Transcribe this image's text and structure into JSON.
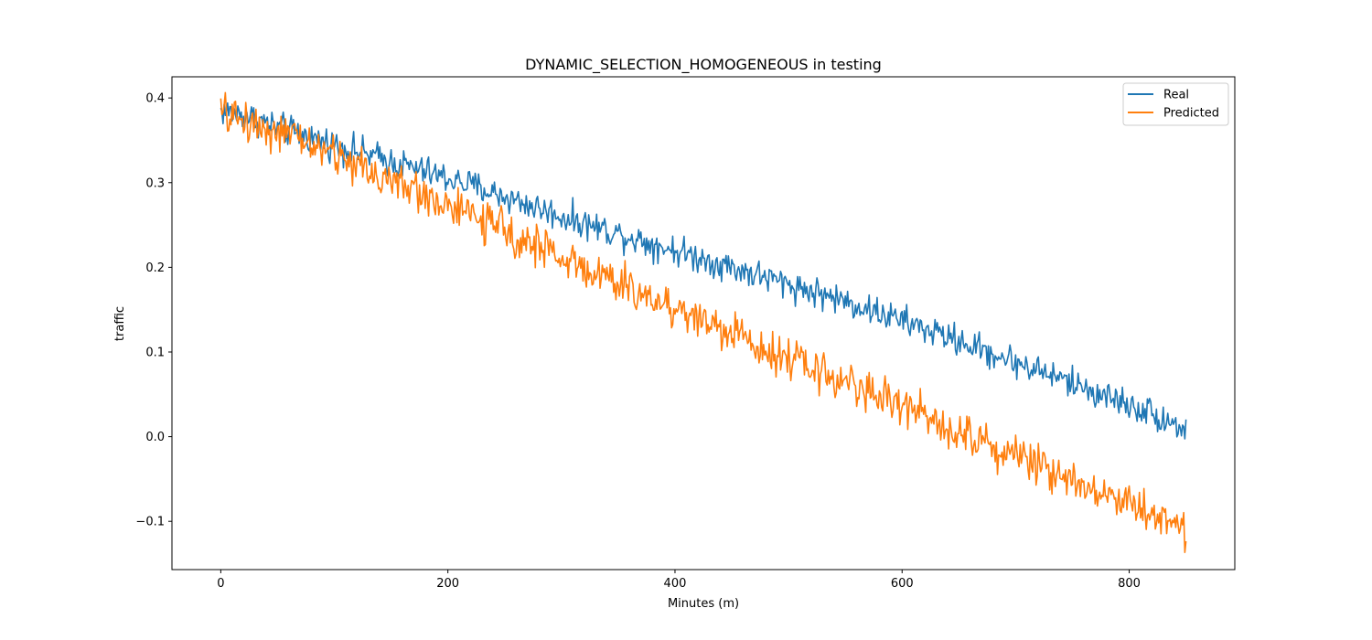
{
  "chart_data": {
    "type": "line",
    "title": "DYNAMIC_SELECTION_HOMOGENEOUS in testing",
    "xlabel": "Minutes (m)",
    "ylabel": "traffic",
    "xlim": [
      -43,
      893
    ],
    "ylim": [
      -0.157,
      0.425
    ],
    "xticks": [
      0,
      200,
      400,
      600,
      800
    ],
    "xtick_labels": [
      "0",
      "200",
      "400",
      "600",
      "800"
    ],
    "yticks": [
      -0.1,
      0.0,
      0.1,
      0.2,
      0.3,
      0.4
    ],
    "ytick_labels": [
      "−0.1",
      "0.0",
      "0.1",
      "0.2",
      "0.3",
      "0.4"
    ],
    "grid": false,
    "legend_position": "top-right",
    "series": [
      {
        "name": "Real",
        "color": "#1f77b4",
        "x": [
          0,
          25,
          50,
          75,
          100,
          125,
          150,
          175,
          200,
          225,
          250,
          275,
          300,
          325,
          350,
          375,
          400,
          425,
          450,
          475,
          500,
          525,
          550,
          575,
          600,
          625,
          650,
          675,
          700,
          725,
          750,
          775,
          800,
          825,
          850
        ],
        "y": [
          0.385,
          0.378,
          0.365,
          0.355,
          0.345,
          0.335,
          0.325,
          0.315,
          0.305,
          0.295,
          0.283,
          0.272,
          0.26,
          0.25,
          0.24,
          0.23,
          0.22,
          0.21,
          0.2,
          0.19,
          0.18,
          0.17,
          0.16,
          0.148,
          0.137,
          0.125,
          0.113,
          0.1,
          0.088,
          0.076,
          0.063,
          0.05,
          0.038,
          0.025,
          0.008
        ],
        "noise": 0.009
      },
      {
        "name": "Predicted",
        "color": "#ff7f0e",
        "x": [
          0,
          25,
          50,
          75,
          100,
          125,
          150,
          175,
          200,
          225,
          250,
          275,
          300,
          325,
          350,
          375,
          400,
          425,
          450,
          475,
          500,
          525,
          550,
          575,
          600,
          625,
          650,
          675,
          700,
          725,
          750,
          775,
          800,
          825,
          850
        ],
        "y": [
          0.382,
          0.372,
          0.36,
          0.348,
          0.333,
          0.318,
          0.302,
          0.288,
          0.273,
          0.258,
          0.243,
          0.228,
          0.212,
          0.196,
          0.18,
          0.166,
          0.152,
          0.138,
          0.122,
          0.108,
          0.093,
          0.078,
          0.065,
          0.052,
          0.037,
          0.022,
          0.008,
          -0.008,
          -0.022,
          -0.036,
          -0.05,
          -0.064,
          -0.078,
          -0.092,
          -0.11
        ],
        "noise": 0.012
      }
    ]
  }
}
